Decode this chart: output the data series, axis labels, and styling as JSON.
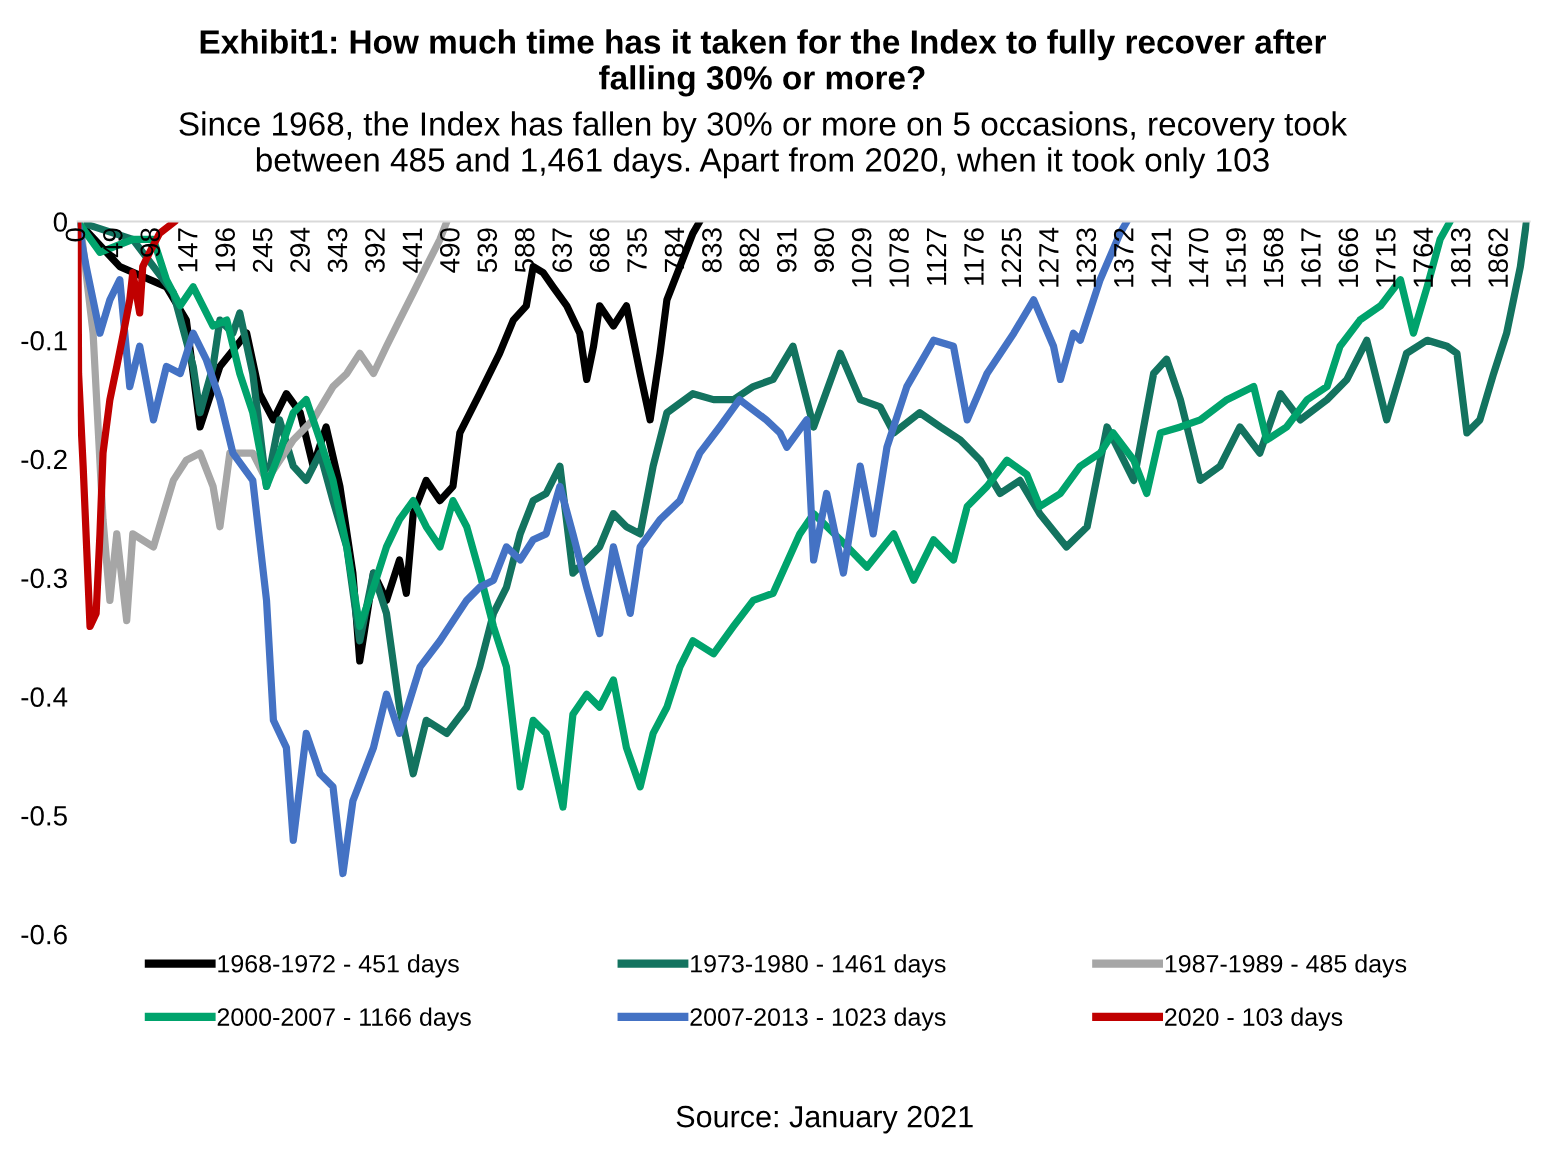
{
  "chart_data": {
    "type": "line",
    "title": "Exhibit1: How much time has it taken for the Index to fully recover after\nfalling 30% or more?",
    "subtitle": "Since 1968, the Index has fallen by 30% or more on 5 occasions, recovery took\nbetween 485 and 1,461 days. Apart from 2020, when it took only 103",
    "annotations": [
      "Source: January 2021"
    ],
    "xlim": [
      0,
      1900
    ],
    "xticks": [
      0,
      49,
      98,
      147,
      196,
      245,
      294,
      343,
      392,
      441,
      490,
      539,
      588,
      637,
      686,
      735,
      784,
      833,
      882,
      931,
      980,
      1029,
      1078,
      1127,
      1176,
      1225,
      1274,
      1323,
      1372,
      1421,
      1470,
      1519,
      1568,
      1617,
      1666,
      1715,
      1764,
      1813,
      1862
    ],
    "ylim": [
      -0.6,
      0
    ],
    "yticks": [
      0,
      -0.1,
      -0.2,
      -0.3,
      -0.4,
      -0.5,
      -0.6
    ],
    "grid": false,
    "legend": "bottom",
    "marker": "none",
    "line_style": "solid",
    "series": [
      {
        "name": "1968-1972 - 451 days",
        "color": "#000000",
        "x": [
          0,
          55,
          116,
          142,
          160,
          186,
          221,
          238,
          256,
          273,
          291,
          308,
          325,
          343,
          360,
          369,
          387,
          404,
          421,
          430,
          439,
          456,
          474,
          491,
          500,
          526,
          552,
          570,
          587,
          596,
          609,
          622,
          640,
          657,
          666,
          675,
          683,
          701,
          718,
          736,
          749,
          762,
          771,
          788,
          805,
          814
        ],
        "values": [
          0,
          -0.038,
          -0.055,
          -0.083,
          -0.173,
          -0.122,
          -0.094,
          -0.145,
          -0.167,
          -0.145,
          -0.161,
          -0.206,
          -0.173,
          -0.223,
          -0.296,
          -0.37,
          -0.296,
          -0.319,
          -0.285,
          -0.313,
          -0.246,
          -0.218,
          -0.235,
          -0.223,
          -0.178,
          -0.145,
          -0.111,
          -0.083,
          -0.071,
          -0.038,
          -0.043,
          -0.055,
          -0.071,
          -0.094,
          -0.133,
          -0.105,
          -0.071,
          -0.088,
          -0.071,
          -0.128,
          -0.167,
          -0.111,
          -0.066,
          -0.038,
          -0.01,
          0
        ]
      },
      {
        "name": "1973-1980 - 1461 days",
        "color": "#13735f",
        "x": [
          0,
          72,
          125,
          151,
          160,
          177,
          186,
          203,
          212,
          229,
          247,
          264,
          282,
          299,
          317,
          334,
          352,
          369,
          387,
          404,
          421,
          439,
          456,
          483,
          509,
          526,
          544,
          561,
          579,
          596,
          613,
          631,
          648,
          666,
          683,
          701,
          718,
          736,
          753,
          771,
          805,
          832,
          858,
          884,
          910,
          936,
          963,
          998,
          1024,
          1050,
          1068,
          1102,
          1129,
          1155,
          1181,
          1207,
          1233,
          1259,
          1294,
          1321,
          1347,
          1382,
          1408,
          1425,
          1443,
          1469,
          1495,
          1521,
          1547,
          1574,
          1600,
          1635,
          1661,
          1687,
          1713,
          1739,
          1766,
          1792,
          1805,
          1818,
          1835,
          1853,
          1870,
          1888,
          1896
        ],
        "values": [
          0,
          -0.015,
          -0.06,
          -0.122,
          -0.161,
          -0.122,
          -0.083,
          -0.094,
          -0.077,
          -0.128,
          -0.223,
          -0.167,
          -0.206,
          -0.218,
          -0.195,
          -0.235,
          -0.274,
          -0.353,
          -0.296,
          -0.33,
          -0.409,
          -0.465,
          -0.42,
          -0.431,
          -0.409,
          -0.375,
          -0.33,
          -0.308,
          -0.263,
          -0.235,
          -0.229,
          -0.206,
          -0.296,
          -0.285,
          -0.274,
          -0.246,
          -0.257,
          -0.263,
          -0.206,
          -0.161,
          -0.145,
          -0.15,
          -0.15,
          -0.139,
          -0.133,
          -0.105,
          -0.173,
          -0.111,
          -0.15,
          -0.156,
          -0.178,
          -0.161,
          -0.173,
          -0.184,
          -0.201,
          -0.229,
          -0.218,
          -0.246,
          -0.274,
          -0.257,
          -0.173,
          -0.218,
          -0.128,
          -0.116,
          -0.15,
          -0.218,
          -0.206,
          -0.173,
          -0.195,
          -0.145,
          -0.167,
          -0.15,
          -0.133,
          -0.1,
          -0.167,
          -0.111,
          -0.1,
          -0.105,
          -0.111,
          -0.178,
          -0.167,
          -0.128,
          -0.094,
          -0.038,
          0
        ]
      },
      {
        "name": "1987-1989 - 485 days",
        "color": "#a6a6a6",
        "x": [
          3,
          20,
          33,
          42,
          51,
          64,
          72,
          99,
          125,
          142,
          160,
          177,
          186,
          199,
          229,
          247,
          282,
          308,
          334,
          352,
          369,
          387,
          404,
          421,
          439,
          456,
          474,
          483
        ],
        "values": [
          0,
          -0.094,
          -0.251,
          -0.319,
          -0.263,
          -0.336,
          -0.263,
          -0.274,
          -0.218,
          -0.201,
          -0.195,
          -0.223,
          -0.257,
          -0.195,
          -0.195,
          -0.218,
          -0.184,
          -0.167,
          -0.139,
          -0.128,
          -0.111,
          -0.128,
          -0.105,
          -0.083,
          -0.06,
          -0.038,
          -0.015,
          0
        ]
      },
      {
        "name": "2000-2007 - 1166 days",
        "color": "#00a36c",
        "x": [
          0,
          29,
          72,
          99,
          116,
          134,
          151,
          177,
          195,
          212,
          229,
          247,
          264,
          282,
          299,
          317,
          334,
          352,
          369,
          387,
          404,
          421,
          439,
          456,
          474,
          491,
          509,
          526,
          544,
          561,
          579,
          596,
          613,
          635,
          648,
          666,
          683,
          701,
          718,
          736,
          753,
          771,
          788,
          805,
          832,
          858,
          884,
          910,
          945,
          963,
          998,
          1033,
          1068,
          1094,
          1120,
          1146,
          1164,
          1190,
          1216,
          1242,
          1259,
          1286,
          1312,
          1338,
          1355,
          1382,
          1399,
          1417,
          1443,
          1469,
          1504,
          1539,
          1556,
          1582,
          1609,
          1635,
          1652,
          1678,
          1705,
          1731,
          1748,
          1766,
          1783,
          1796
        ],
        "values": [
          0,
          -0.026,
          -0.015,
          -0.015,
          -0.049,
          -0.071,
          -0.055,
          -0.088,
          -0.083,
          -0.128,
          -0.161,
          -0.223,
          -0.195,
          -0.161,
          -0.15,
          -0.184,
          -0.218,
          -0.274,
          -0.341,
          -0.308,
          -0.274,
          -0.251,
          -0.235,
          -0.257,
          -0.274,
          -0.235,
          -0.257,
          -0.296,
          -0.341,
          -0.375,
          -0.476,
          -0.42,
          -0.431,
          -0.493,
          -0.415,
          -0.398,
          -0.409,
          -0.386,
          -0.443,
          -0.476,
          -0.431,
          -0.409,
          -0.375,
          -0.353,
          -0.364,
          -0.341,
          -0.319,
          -0.313,
          -0.263,
          -0.246,
          -0.268,
          -0.291,
          -0.263,
          -0.302,
          -0.268,
          -0.285,
          -0.24,
          -0.223,
          -0.201,
          -0.213,
          -0.24,
          -0.229,
          -0.206,
          -0.195,
          -0.178,
          -0.201,
          -0.229,
          -0.178,
          -0.173,
          -0.167,
          -0.15,
          -0.139,
          -0.184,
          -0.173,
          -0.15,
          -0.139,
          -0.105,
          -0.083,
          -0.071,
          -0.049,
          -0.094,
          -0.055,
          -0.015,
          0
        ]
      },
      {
        "name": "2007-2013 - 1023 days",
        "color": "#4472c4",
        "x": [
          0,
          11,
          29,
          42,
          55,
          68,
          81,
          99,
          116,
          134,
          151,
          168,
          186,
          203,
          229,
          247,
          256,
          273,
          282,
          299,
          317,
          334,
          347,
          360,
          387,
          404,
          421,
          448,
          474,
          509,
          526,
          544,
          561,
          579,
          596,
          613,
          631,
          648,
          666,
          683,
          701,
          723,
          736,
          762,
          788,
          814,
          840,
          866,
          901,
          919,
          928,
          954,
          963,
          980,
          1002,
          1024,
          1041,
          1059,
          1085,
          1120,
          1146,
          1164,
          1190,
          1225,
          1251,
          1277,
          1286,
          1303,
          1312,
          1338,
          1364,
          1373
        ],
        "values": [
          0,
          -0.038,
          -0.094,
          -0.066,
          -0.049,
          -0.139,
          -0.105,
          -0.167,
          -0.122,
          -0.128,
          -0.094,
          -0.116,
          -0.15,
          -0.195,
          -0.218,
          -0.319,
          -0.42,
          -0.443,
          -0.521,
          -0.431,
          -0.465,
          -0.476,
          -0.549,
          -0.488,
          -0.443,
          -0.398,
          -0.431,
          -0.375,
          -0.353,
          -0.319,
          -0.308,
          -0.302,
          -0.274,
          -0.285,
          -0.268,
          -0.263,
          -0.223,
          -0.263,
          -0.308,
          -0.347,
          -0.274,
          -0.33,
          -0.274,
          -0.251,
          -0.235,
          -0.195,
          -0.173,
          -0.15,
          -0.167,
          -0.178,
          -0.19,
          -0.167,
          -0.285,
          -0.229,
          -0.296,
          -0.206,
          -0.263,
          -0.19,
          -0.139,
          -0.1,
          -0.105,
          -0.167,
          -0.128,
          -0.094,
          -0.066,
          -0.105,
          -0.133,
          -0.094,
          -0.1,
          -0.049,
          -0.01,
          0
        ]
      },
      {
        "name": "2020 - 103 days",
        "color": "#c00000",
        "x": [
          0,
          1,
          7,
          16,
          24,
          29,
          33,
          42,
          51,
          60,
          68,
          72,
          81,
          85,
          94,
          107,
          127
        ],
        "values": [
          0,
          -0.128,
          -0.206,
          -0.341,
          -0.33,
          -0.263,
          -0.195,
          -0.15,
          -0.122,
          -0.093,
          -0.066,
          -0.043,
          -0.077,
          -0.038,
          -0.026,
          -0.01,
          0
        ]
      }
    ]
  }
}
